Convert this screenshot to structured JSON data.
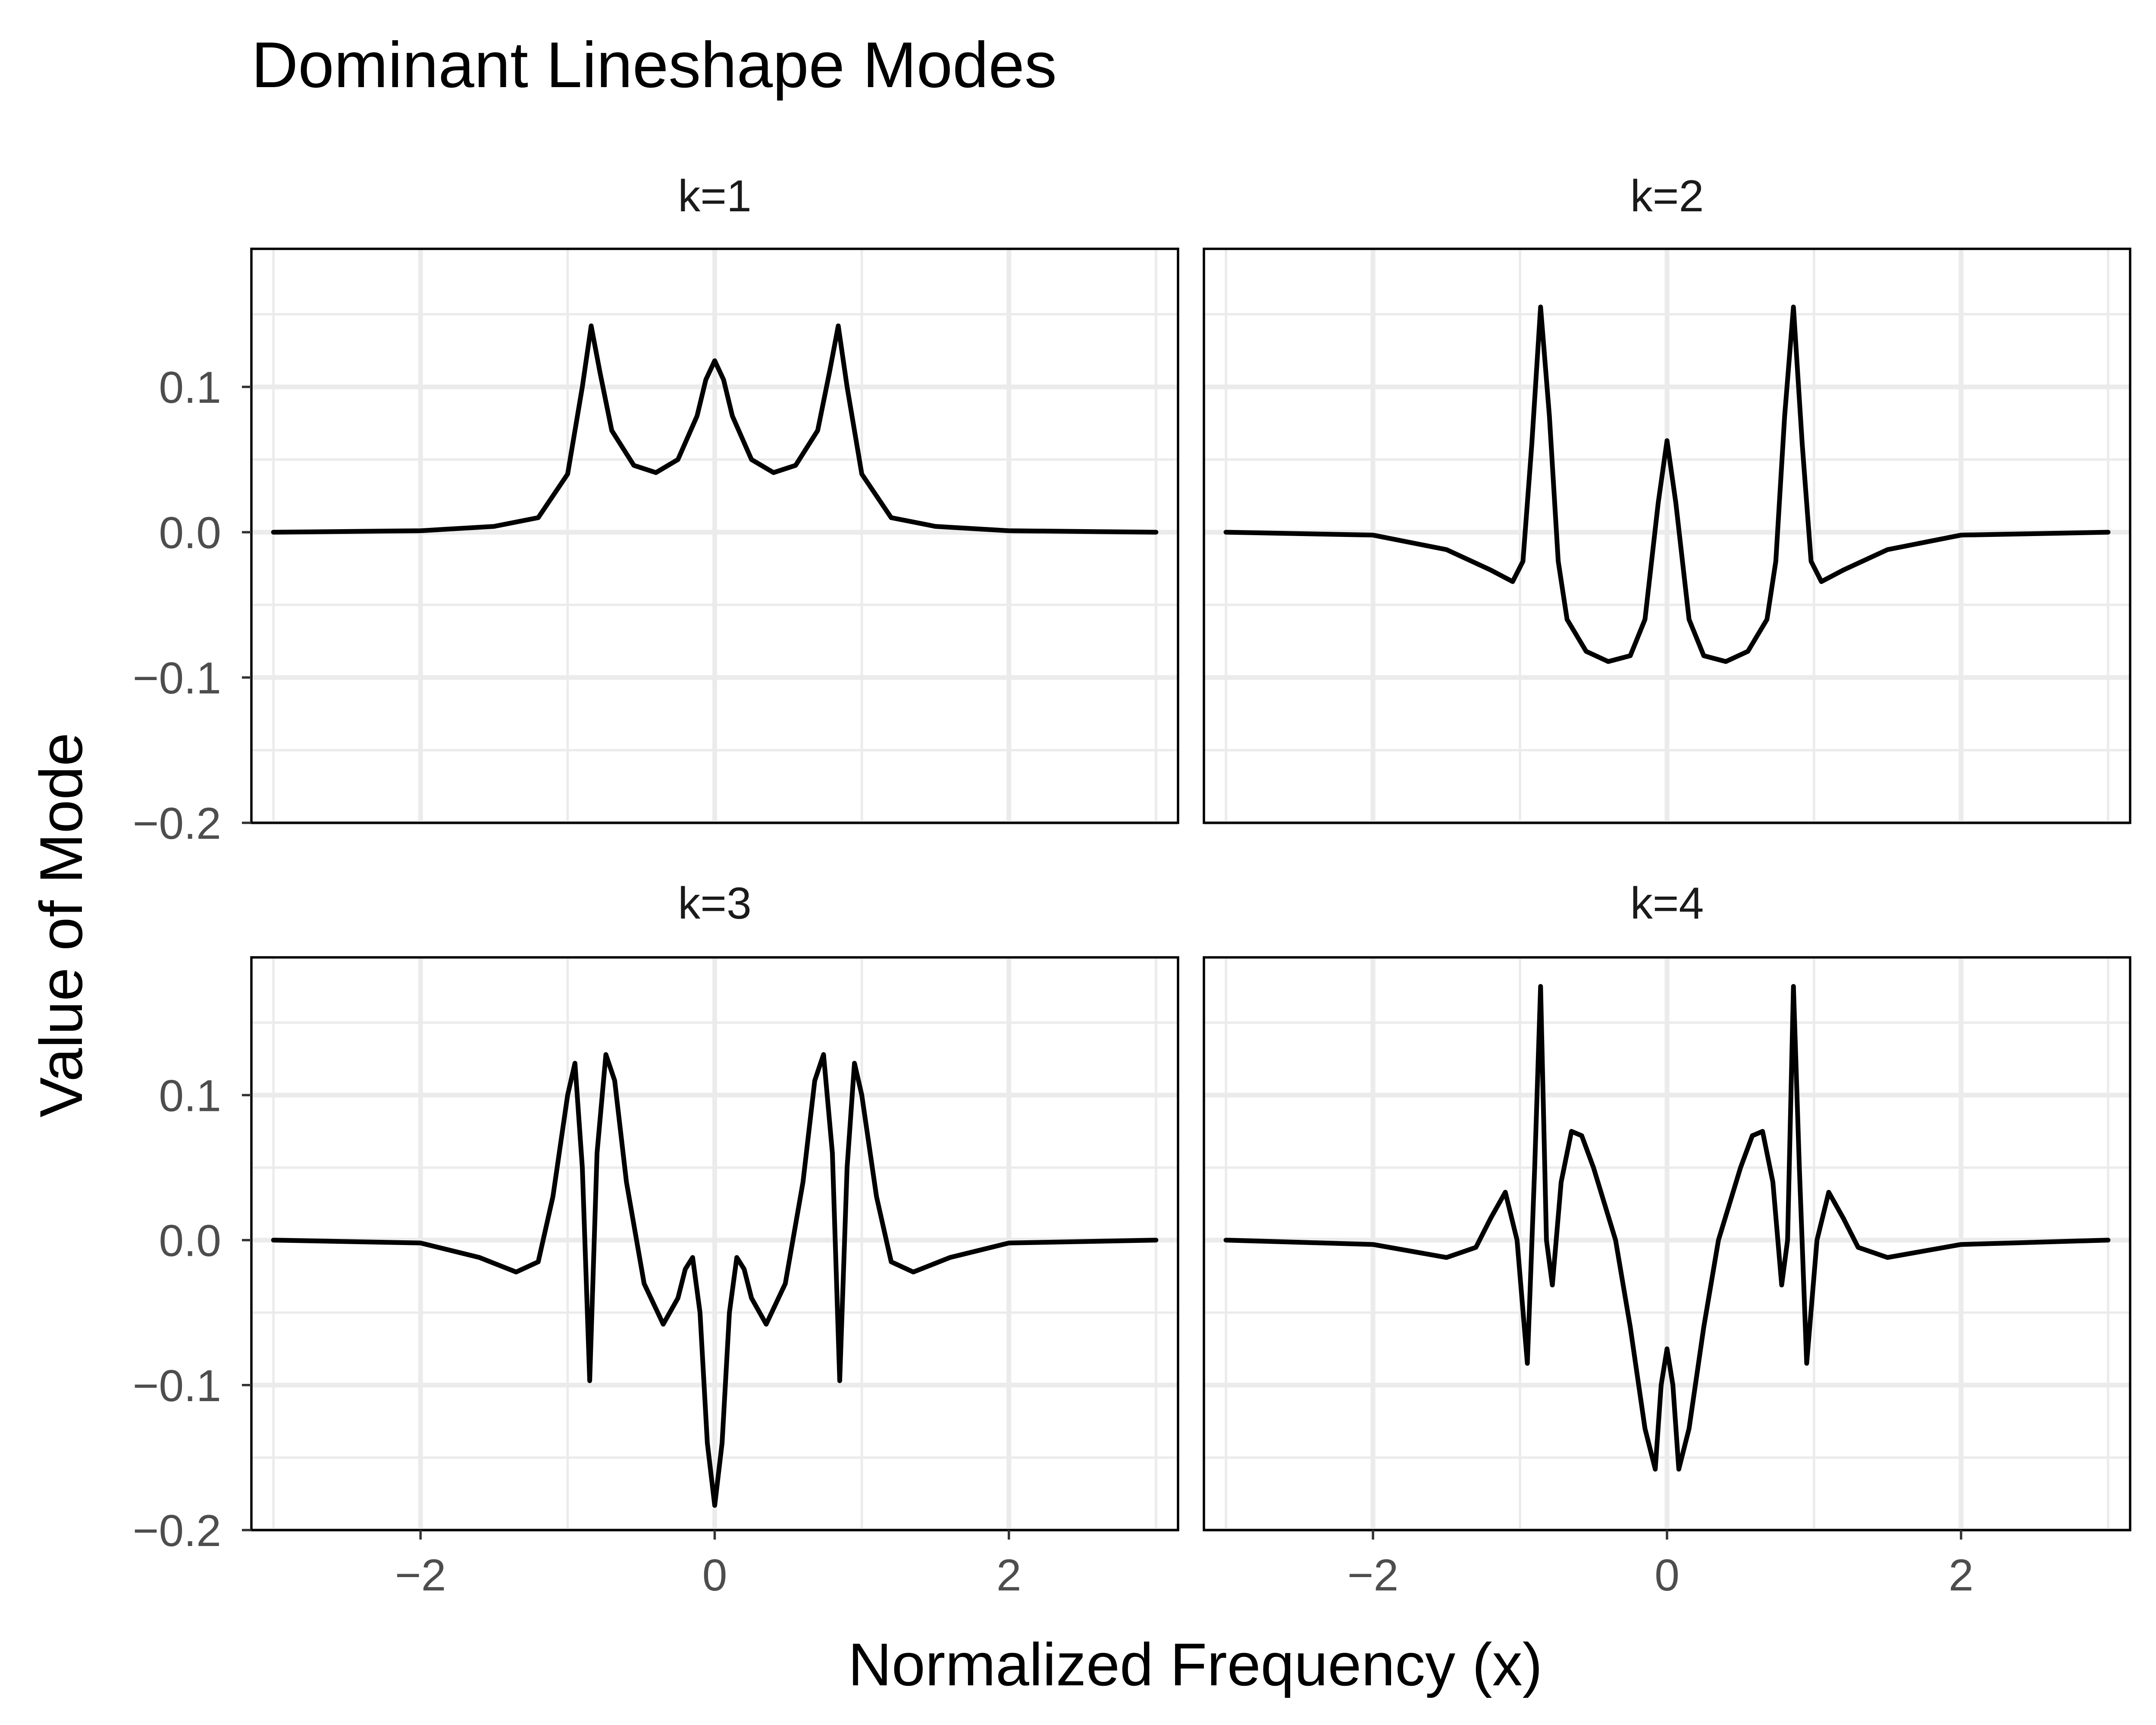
{
  "chart_data": {
    "type": "line",
    "title": "Dominant Lineshape Modes",
    "xlabel": "Normalized Frequency (x)",
    "ylabel": "Value of Mode",
    "xlim": [
      -3.15,
      3.15
    ],
    "ylim": [
      -0.2,
      0.195
    ],
    "x_ticks": [
      -2,
      0,
      2
    ],
    "x_tick_labels": [
      "−2",
      "0",
      "2"
    ],
    "y_ticks": [
      -0.2,
      -0.1,
      0.0,
      0.1
    ],
    "y_tick_labels": [
      "−0.2",
      "−0.1",
      "0.0",
      "0.1"
    ],
    "grid": true,
    "facets": [
      {
        "label": "k=1",
        "x": [
          -3.0,
          -2.0,
          -1.5,
          -1.2,
          -1.0,
          -0.9,
          -0.84,
          -0.78,
          -0.7,
          -0.55,
          -0.4,
          -0.25,
          -0.12,
          -0.06,
          0.0,
          0.06,
          0.12,
          0.25,
          0.4,
          0.55,
          0.7,
          0.78,
          0.84,
          0.9,
          1.0,
          1.2,
          1.5,
          2.0,
          3.0
        ],
        "y": [
          0.0,
          0.001,
          0.004,
          0.01,
          0.04,
          0.1,
          0.142,
          0.11,
          0.07,
          0.046,
          0.041,
          0.05,
          0.08,
          0.105,
          0.118,
          0.105,
          0.08,
          0.05,
          0.041,
          0.046,
          0.07,
          0.11,
          0.142,
          0.1,
          0.04,
          0.01,
          0.004,
          0.001,
          0.0
        ]
      },
      {
        "label": "k=2",
        "x": [
          -3.0,
          -2.0,
          -1.5,
          -1.2,
          -1.05,
          -0.98,
          -0.92,
          -0.86,
          -0.8,
          -0.74,
          -0.68,
          -0.55,
          -0.4,
          -0.25,
          -0.15,
          -0.06,
          0.0,
          0.06,
          0.15,
          0.25,
          0.4,
          0.55,
          0.68,
          0.74,
          0.8,
          0.86,
          0.92,
          0.98,
          1.05,
          1.2,
          1.5,
          2.0,
          3.0
        ],
        "y": [
          0.0,
          -0.002,
          -0.012,
          -0.026,
          -0.034,
          -0.02,
          0.06,
          0.155,
          0.08,
          -0.02,
          -0.06,
          -0.082,
          -0.089,
          -0.085,
          -0.06,
          0.02,
          0.063,
          0.02,
          -0.06,
          -0.085,
          -0.089,
          -0.082,
          -0.06,
          -0.02,
          0.08,
          0.155,
          0.06,
          -0.02,
          -0.034,
          -0.026,
          -0.012,
          -0.002,
          0.0
        ]
      },
      {
        "label": "k=3",
        "x": [
          -3.0,
          -2.0,
          -1.6,
          -1.35,
          -1.2,
          -1.1,
          -1.0,
          -0.95,
          -0.9,
          -0.85,
          -0.8,
          -0.74,
          -0.68,
          -0.6,
          -0.48,
          -0.35,
          -0.25,
          -0.2,
          -0.15,
          -0.1,
          -0.05,
          0.0,
          0.05,
          0.1,
          0.15,
          0.2,
          0.25,
          0.35,
          0.48,
          0.6,
          0.68,
          0.74,
          0.8,
          0.85,
          0.9,
          0.95,
          1.0,
          1.1,
          1.2,
          1.35,
          1.6,
          2.0,
          3.0
        ],
        "y": [
          0.0,
          -0.002,
          -0.012,
          -0.022,
          -0.015,
          0.03,
          0.1,
          0.122,
          0.05,
          -0.097,
          0.06,
          0.128,
          0.11,
          0.04,
          -0.03,
          -0.058,
          -0.04,
          -0.02,
          -0.012,
          -0.05,
          -0.14,
          -0.183,
          -0.14,
          -0.05,
          -0.012,
          -0.02,
          -0.04,
          -0.058,
          -0.03,
          0.04,
          0.11,
          0.128,
          0.06,
          -0.097,
          0.05,
          0.122,
          0.1,
          0.03,
          -0.015,
          -0.022,
          -0.012,
          -0.002,
          0.0
        ]
      },
      {
        "label": "k=4",
        "x": [
          -3.0,
          -2.0,
          -1.5,
          -1.3,
          -1.2,
          -1.1,
          -1.02,
          -0.95,
          -0.9,
          -0.86,
          -0.82,
          -0.78,
          -0.72,
          -0.65,
          -0.58,
          -0.5,
          -0.35,
          -0.25,
          -0.15,
          -0.08,
          -0.04,
          0.0,
          0.04,
          0.08,
          0.15,
          0.25,
          0.35,
          0.5,
          0.58,
          0.65,
          0.72,
          0.78,
          0.82,
          0.86,
          0.9,
          0.95,
          1.02,
          1.1,
          1.2,
          1.3,
          1.5,
          2.0,
          3.0
        ],
        "y": [
          0.0,
          -0.003,
          -0.012,
          -0.005,
          0.015,
          0.033,
          0.0,
          -0.085,
          0.05,
          0.175,
          0.0,
          -0.031,
          0.04,
          0.075,
          0.072,
          0.05,
          0.0,
          -0.06,
          -0.13,
          -0.158,
          -0.1,
          -0.075,
          -0.1,
          -0.158,
          -0.13,
          -0.06,
          0.0,
          0.05,
          0.072,
          0.075,
          0.04,
          -0.031,
          0.0,
          0.175,
          0.05,
          -0.085,
          0.0,
          0.033,
          0.015,
          -0.005,
          -0.012,
          -0.003,
          0.0
        ]
      }
    ]
  }
}
